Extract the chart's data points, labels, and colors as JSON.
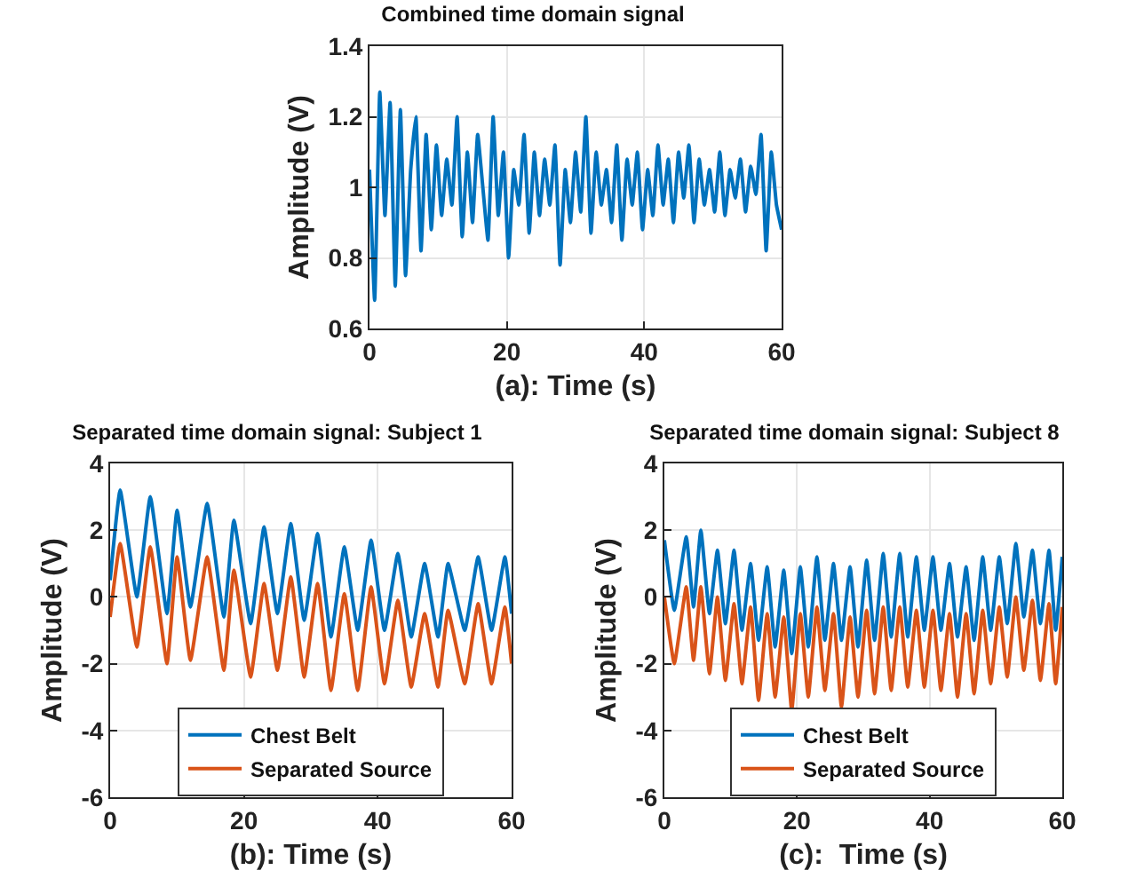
{
  "chart_data": [
    {
      "type": "line",
      "title": "Combined time domain signal",
      "xlabel": "(a): Time (s)",
      "ylabel": "Amplitude (V)",
      "x": [
        0,
        0.75,
        1.5,
        2.25,
        3,
        3.75,
        4.5,
        5.25,
        6,
        6.75,
        7.5,
        8.25,
        9,
        9.75,
        10.5,
        11.25,
        12,
        12.75,
        13.5,
        14.25,
        15,
        15.75,
        16.5,
        17.25,
        18,
        18.75,
        19.5,
        20.25,
        21,
        21.75,
        22.5,
        23.25,
        24,
        24.75,
        25.5,
        26.25,
        27,
        27.75,
        28.5,
        29.25,
        30,
        30.75,
        31.5,
        32.25,
        33,
        33.75,
        34.5,
        35.25,
        36,
        36.75,
        37.5,
        38.25,
        39,
        39.75,
        40.5,
        41.25,
        42,
        42.75,
        43.5,
        44.25,
        45,
        45.75,
        46.5,
        47.25,
        48,
        48.75,
        49.5,
        50.25,
        51,
        51.75,
        52.5,
        53.25,
        54,
        54.75,
        55.5,
        56.25,
        57,
        57.75,
        58.5,
        59.25,
        60
      ],
      "series": [
        {
          "color": "#0072bd",
          "values": [
            1.05,
            0.68,
            1.27,
            0.92,
            1.24,
            0.72,
            1.22,
            0.75,
            1.05,
            1.2,
            0.82,
            1.15,
            0.88,
            1.12,
            0.92,
            1.08,
            0.95,
            1.2,
            0.86,
            1.1,
            0.9,
            1.15,
            1.0,
            0.85,
            1.2,
            0.92,
            1.1,
            0.8,
            1.05,
            0.95,
            1.15,
            0.87,
            1.1,
            0.92,
            1.08,
            0.95,
            1.12,
            0.78,
            1.05,
            0.9,
            1.1,
            0.93,
            1.2,
            0.87,
            1.1,
            0.95,
            1.05,
            0.9,
            1.12,
            0.85,
            1.08,
            0.95,
            1.1,
            0.88,
            1.05,
            0.92,
            1.12,
            0.95,
            1.08,
            0.9,
            1.1,
            0.97,
            1.12,
            0.9,
            1.08,
            0.95,
            1.05,
            0.93,
            1.1,
            0.92,
            1.05,
            0.97,
            1.08,
            0.93,
            1.06,
            0.98,
            1.15,
            0.82,
            1.1,
            0.95,
            0.88
          ]
        }
      ],
      "xlim": [
        0,
        60
      ],
      "xticks": [
        0,
        20,
        40,
        60
      ],
      "ylim": [
        0.6,
        1.4
      ],
      "yticks": [
        0.6,
        0.8,
        1,
        1.2,
        1.4
      ],
      "grid": true,
      "legend": false
    },
    {
      "type": "line",
      "title": "Separated time domain signal: Subject 1",
      "xlabel": "(b): Time (s)",
      "ylabel": "Amplitude (V)",
      "x": [
        0,
        1.5,
        4,
        6,
        8.5,
        10,
        12,
        14.5,
        17,
        18.5,
        21,
        23,
        25,
        27,
        29,
        31,
        33,
        35,
        37,
        39,
        41,
        43,
        45,
        47,
        49,
        50.5,
        53,
        55,
        57,
        59,
        60
      ],
      "series": [
        {
          "name": "Chest Belt",
          "color": "#0072bd",
          "values": [
            0.5,
            3.2,
            0,
            3.0,
            -0.5,
            2.6,
            -0.3,
            2.8,
            -0.6,
            2.3,
            -0.8,
            2.1,
            -0.5,
            2.2,
            -0.7,
            1.9,
            -1.2,
            1.5,
            -1.0,
            1.7,
            -1.0,
            1.3,
            -1.2,
            1.0,
            -1.2,
            1.0,
            -1.0,
            1.2,
            -1.0,
            1.2,
            -0.5
          ]
        },
        {
          "name": "Separated Source",
          "color": "#d95319",
          "values": [
            -0.6,
            1.6,
            -1.5,
            1.5,
            -2.0,
            1.2,
            -1.9,
            1.2,
            -2.2,
            0.8,
            -2.4,
            0.4,
            -2.2,
            0.6,
            -2.4,
            0.4,
            -2.8,
            0.1,
            -2.8,
            0.3,
            -2.6,
            -0.1,
            -2.7,
            -0.5,
            -2.7,
            -0.4,
            -2.6,
            -0.2,
            -2.6,
            -0.3,
            -2.0
          ]
        }
      ],
      "xlim": [
        0,
        60
      ],
      "xticks": [
        0,
        20,
        40,
        60
      ],
      "ylim": [
        -6,
        4
      ],
      "yticks": [
        -6,
        -4,
        -2,
        0,
        2,
        4
      ],
      "grid": true,
      "legend": "bottom"
    },
    {
      "type": "line",
      "title": "Separated time domain signal: Subject 8",
      "xlabel": "(c):  Time (s)",
      "ylabel": "Amplitude (V)",
      "x": [
        0,
        1.5,
        3.3,
        4.4,
        5.5,
        6.8,
        8,
        9.2,
        10.5,
        11.7,
        13,
        14.2,
        15.5,
        16.7,
        18,
        19.2,
        20.5,
        21.7,
        23,
        24.2,
        25.5,
        26.7,
        28,
        29.2,
        30.5,
        31.7,
        33,
        34.2,
        35.5,
        36.7,
        38,
        39.2,
        40.5,
        41.7,
        43,
        44.2,
        45.5,
        46.7,
        48,
        49.2,
        50.5,
        51.7,
        53,
        54.2,
        55.5,
        56.7,
        58,
        59,
        60
      ],
      "series": [
        {
          "name": "Chest Belt",
          "color": "#0072bd",
          "values": [
            1.7,
            -0.4,
            1.8,
            -0.3,
            2.0,
            -0.5,
            1.4,
            -0.8,
            1.4,
            -1.0,
            1.0,
            -1.3,
            0.9,
            -1.5,
            0.8,
            -1.7,
            0.9,
            -1.5,
            1.2,
            -1.3,
            1.0,
            -1.3,
            0.9,
            -1.5,
            1.1,
            -1.3,
            1.3,
            -1.2,
            1.3,
            -1.2,
            1.2,
            -1.0,
            1.2,
            -1.0,
            1.0,
            -1.2,
            0.9,
            -1.3,
            1.2,
            -1.0,
            1.2,
            -0.8,
            1.6,
            -0.6,
            1.4,
            -0.8,
            1.4,
            -1.0,
            1.2
          ]
        },
        {
          "name": "Separated Source",
          "color": "#d95319",
          "values": [
            0,
            -2.0,
            0.3,
            -1.9,
            0.3,
            -2.3,
            0,
            -2.5,
            -0.2,
            -2.6,
            -0.3,
            -3.1,
            -0.5,
            -3.0,
            -0.6,
            -3.4,
            -0.5,
            -3.0,
            -0.3,
            -2.8,
            -0.5,
            -3.3,
            -0.6,
            -3.0,
            -0.4,
            -2.9,
            -0.3,
            -2.8,
            -0.3,
            -2.7,
            -0.4,
            -2.7,
            -0.4,
            -2.8,
            -0.5,
            -3.0,
            -0.5,
            -2.9,
            -0.4,
            -2.6,
            -0.3,
            -2.4,
            0,
            -2.2,
            -0.1,
            -2.5,
            -0.2,
            -2.6,
            -0.3
          ]
        }
      ],
      "xlim": [
        0,
        60
      ],
      "xticks": [
        0,
        20,
        40,
        60
      ],
      "ylim": [
        -6,
        4
      ],
      "yticks": [
        -6,
        -4,
        -2,
        0,
        2,
        4
      ],
      "grid": true,
      "legend": "bottom"
    }
  ]
}
